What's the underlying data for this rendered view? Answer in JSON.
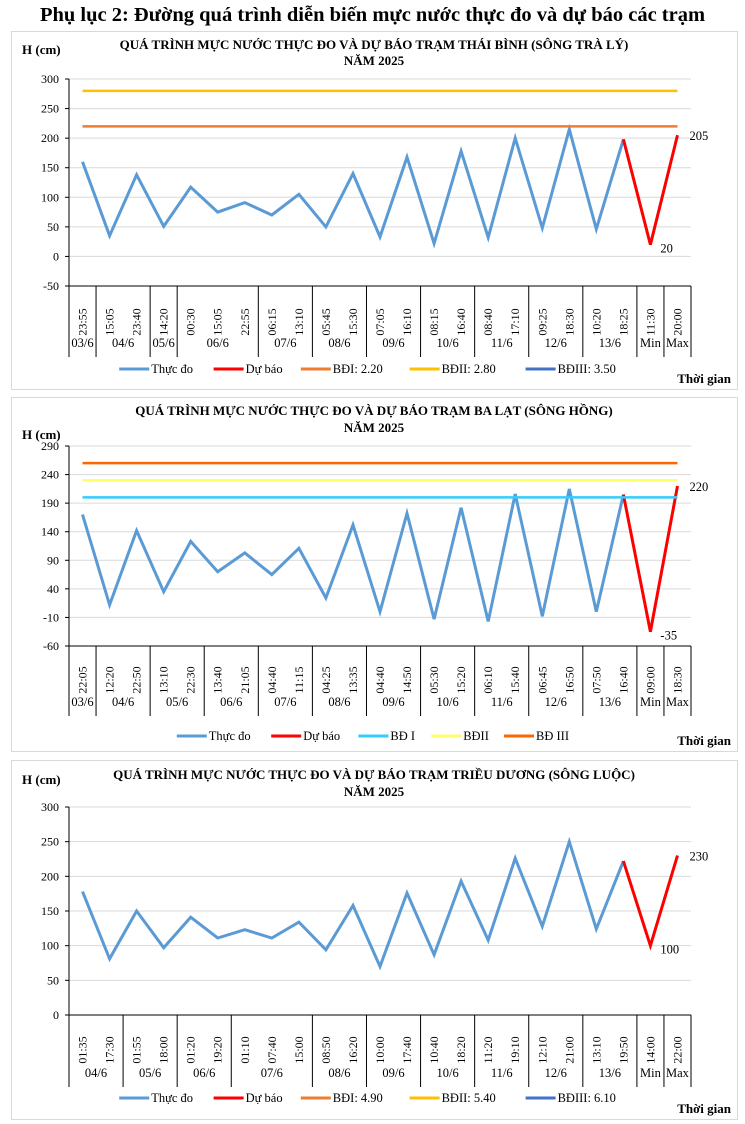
{
  "page": {
    "title": "Phụ lục 2: Đường quá trình diễn biến mực nước thực đo và dự báo các trạm"
  },
  "chart_data": [
    {
      "type": "line",
      "title": "QUÁ TRÌNH MỰC NƯỚC THỰC ĐO VÀ DỰ BÁO TRẠM THÁI BÌNH (SÔNG TRÀ LÝ)",
      "subtitle": "NĂM 2025",
      "ylabel": "H (cm)",
      "xlabel": "Thời gian",
      "ylim": [
        -50,
        300
      ],
      "yticks": [
        -50,
        0,
        50,
        100,
        150,
        200,
        250,
        300
      ],
      "grid": true,
      "legend_position": "bottom",
      "categories": [
        "23:55",
        "15:05",
        "23:40",
        "14:20",
        "00:30",
        "15:05",
        "22:55",
        "06:15",
        "13:10",
        "05:45",
        "15:30",
        "07:05",
        "16:10",
        "08:15",
        "16:40",
        "08:40",
        "17:10",
        "09:25",
        "18:30",
        "10:20",
        "18:25",
        "11:30",
        "20:00"
      ],
      "groups": [
        {
          "label": "03/6",
          "count": 1
        },
        {
          "label": "04/6",
          "count": 2
        },
        {
          "label": "05/6",
          "count": 1
        },
        {
          "label": "06/6",
          "count": 3
        },
        {
          "label": "07/6",
          "count": 2
        },
        {
          "label": "08/6",
          "count": 2
        },
        {
          "label": "09/6",
          "count": 2
        },
        {
          "label": "10/6",
          "count": 2
        },
        {
          "label": "11/6",
          "count": 2
        },
        {
          "label": "12/6",
          "count": 2
        },
        {
          "label": "13/6",
          "count": 2
        },
        {
          "label": "Min",
          "count": 1
        },
        {
          "label": "Max",
          "count": 1
        }
      ],
      "series": [
        {
          "name": "Thực đo",
          "color": "#5b9bd5",
          "values": [
            160,
            35,
            138,
            51,
            117,
            75,
            91,
            70,
            105,
            50,
            140,
            33,
            168,
            22,
            178,
            32,
            200,
            48,
            215,
            46,
            198,
            null,
            null
          ]
        },
        {
          "name": "Dự báo",
          "color": "#ff0000",
          "values": [
            null,
            null,
            null,
            null,
            null,
            null,
            null,
            null,
            null,
            null,
            null,
            null,
            null,
            null,
            null,
            null,
            null,
            null,
            null,
            null,
            198,
            20,
            205
          ]
        },
        {
          "name": "BĐI: 2.20",
          "color": "#ed7d31",
          "level": 220,
          "visible": true
        },
        {
          "name": "BĐII: 2.80",
          "color": "#ffc000",
          "level": 280,
          "visible": true
        },
        {
          "name": "BĐIII: 3.50",
          "color": "#4472c4",
          "level": 350,
          "visible": false
        }
      ],
      "annotations": [
        {
          "category_index": 21,
          "value": 20,
          "text": "20"
        },
        {
          "category_index": 22,
          "value": 205,
          "text": "205"
        }
      ]
    },
    {
      "type": "line",
      "title": "QUÁ TRÌNH MỰC NƯỚC THỰC ĐO VÀ DỰ BÁO TRẠM BA LẠT (SÔNG HỒNG)",
      "subtitle": "NĂM 2025",
      "ylabel": "H (cm)",
      "xlabel": "Thời gian",
      "ylim": [
        -60,
        290
      ],
      "yticks": [
        -60,
        -10,
        40,
        90,
        140,
        190,
        240,
        290
      ],
      "grid": true,
      "legend_position": "bottom",
      "categories": [
        "22:05",
        "12:20",
        "22:50",
        "13:10",
        "22:30",
        "13:40",
        "21:05",
        "04:40",
        "11:15",
        "04:25",
        "13:35",
        "04:40",
        "14:50",
        "05:30",
        "15:20",
        "06:10",
        "15:40",
        "06:45",
        "16:50",
        "07:50",
        "16:40",
        "09:00",
        "18:30"
      ],
      "groups": [
        {
          "label": "03/6",
          "count": 1
        },
        {
          "label": "04/6",
          "count": 2
        },
        {
          "label": "05/6",
          "count": 2
        },
        {
          "label": "06/6",
          "count": 2
        },
        {
          "label": "07/6",
          "count": 2
        },
        {
          "label": "08/6",
          "count": 2
        },
        {
          "label": "09/6",
          "count": 2
        },
        {
          "label": "10/6",
          "count": 2
        },
        {
          "label": "11/6",
          "count": 2
        },
        {
          "label": "12/6",
          "count": 2
        },
        {
          "label": "13/6",
          "count": 2
        },
        {
          "label": "Min",
          "count": 1
        },
        {
          "label": "Max",
          "count": 1
        }
      ],
      "series": [
        {
          "name": "Thực đo",
          "color": "#5b9bd5",
          "values": [
            170,
            12,
            142,
            35,
            123,
            70,
            103,
            65,
            111,
            24,
            152,
            0,
            172,
            -13,
            182,
            -17,
            206,
            -8,
            215,
            0,
            205,
            null,
            null
          ]
        },
        {
          "name": "Dự báo",
          "color": "#ff0000",
          "values": [
            null,
            null,
            null,
            null,
            null,
            null,
            null,
            null,
            null,
            null,
            null,
            null,
            null,
            null,
            null,
            null,
            null,
            null,
            null,
            null,
            205,
            -35,
            220
          ]
        },
        {
          "name": "BĐ I",
          "color": "#33ccff",
          "level": 200,
          "visible": true
        },
        {
          "name": "BĐII",
          "color": "#ffff66",
          "level": 230,
          "visible": true
        },
        {
          "name": "BĐ III",
          "color": "#ff6600",
          "level": 260,
          "visible": true
        }
      ],
      "annotations": [
        {
          "category_index": 21,
          "value": -35,
          "text": "-35"
        },
        {
          "category_index": 22,
          "value": 220,
          "text": "220"
        }
      ]
    },
    {
      "type": "line",
      "title": "QUÁ TRÌNH MỰC NƯỚC THỰC ĐO VÀ DỰ BÁO TRẠM TRIỀU DƯƠNG  (SÔNG LUỘC)",
      "subtitle": "NĂM 2025",
      "ylabel": "H (cm)",
      "xlabel": "Thời gian",
      "ylim": [
        0,
        300
      ],
      "yticks": [
        0,
        50,
        100,
        150,
        200,
        250,
        300
      ],
      "grid": true,
      "legend_position": "bottom",
      "categories": [
        "01:35",
        "17:30",
        "01:55",
        "18:00",
        "01:20",
        "19:20",
        "01:10",
        "07:40",
        "15:00",
        "08:50",
        "16:20",
        "10:00",
        "17:40",
        "10:40",
        "18:20",
        "11:20",
        "19:10",
        "12:10",
        "21:00",
        "13:10",
        "19:50",
        "14:00",
        "22:00"
      ],
      "groups": [
        {
          "label": "04/6",
          "count": 2
        },
        {
          "label": "05/6",
          "count": 2
        },
        {
          "label": "06/6",
          "count": 2
        },
        {
          "label": "07/6",
          "count": 3
        },
        {
          "label": "08/6",
          "count": 2
        },
        {
          "label": "09/6",
          "count": 2
        },
        {
          "label": "10/6",
          "count": 2
        },
        {
          "label": "11/6",
          "count": 2
        },
        {
          "label": "12/6",
          "count": 2
        },
        {
          "label": "13/6",
          "count": 2
        },
        {
          "label": "Min",
          "count": 1
        },
        {
          "label": "Max",
          "count": 1
        }
      ],
      "series": [
        {
          "name": "Thực đo",
          "color": "#5b9bd5",
          "values": [
            178,
            81,
            150,
            97,
            141,
            111,
            123,
            111,
            134,
            94,
            158,
            70,
            176,
            87,
            193,
            108,
            226,
            128,
            250,
            124,
            222,
            null,
            null
          ]
        },
        {
          "name": "Dự báo",
          "color": "#ff0000",
          "values": [
            null,
            null,
            null,
            null,
            null,
            null,
            null,
            null,
            null,
            null,
            null,
            null,
            null,
            null,
            null,
            null,
            null,
            null,
            null,
            null,
            222,
            100,
            230
          ]
        },
        {
          "name": "BĐI: 4.90",
          "color": "#ed7d31",
          "level": 490,
          "visible": false
        },
        {
          "name": "BĐII: 5.40",
          "color": "#ffc000",
          "level": 540,
          "visible": false
        },
        {
          "name": "BĐIII: 6.10",
          "color": "#4472c4",
          "level": 610,
          "visible": false
        }
      ],
      "annotations": [
        {
          "category_index": 21,
          "value": 100,
          "text": "100"
        },
        {
          "category_index": 22,
          "value": 230,
          "text": "230"
        }
      ]
    }
  ]
}
